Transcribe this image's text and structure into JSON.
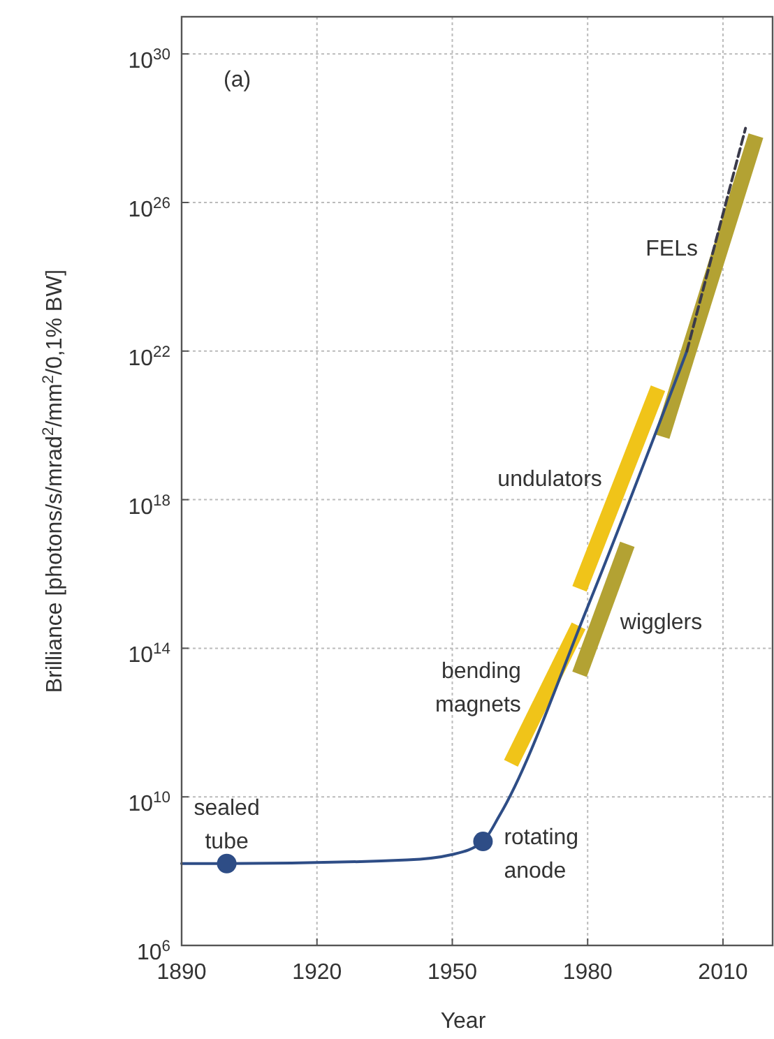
{
  "chart_data": {
    "type": "line",
    "xlabel": "Year",
    "ylabel": "Brilliance [photons/s/mrad$^{2}$/mm$^{2}$/0,1% BW]",
    "log": "y",
    "grid": true,
    "xlim": [
      1890,
      2021
    ],
    "xticks": [
      1890,
      1920,
      1950,
      1980,
      2010
    ],
    "ylim": [
      1000000.0,
      1e+31
    ],
    "yticks": [
      {
        "value": 1000000.0,
        "label": "10$^{6}$"
      },
      {
        "value": 10000000000.0,
        "label": "10$^{10}$"
      },
      {
        "value": 100000000000000.0,
        "label": "10$^{14}$"
      },
      {
        "value": 1e+18,
        "label": "10$^{18}$"
      },
      {
        "value": 1e+22,
        "label": "10$^{22}$"
      },
      {
        "value": 1e+26,
        "label": "10$^{26}$"
      },
      {
        "value": 1e+30,
        "label": "10$^{30}$"
      }
    ],
    "series": [
      {
        "name": "bending\nmagnets",
        "color": "#f0c419",
        "x": [
          1963,
          1978
        ],
        "values": [
          80000000000.0,
          400000000000000.0
        ]
      },
      {
        "name": "undulators",
        "color": "#f0c419",
        "x": [
          1978.2,
          1995.6
        ],
        "values": [
          4000000000000000.0,
          1e+21
        ]
      },
      {
        "name": "wigglers",
        "color": "#b3a233",
        "x": [
          1978.2,
          1988.8
        ],
        "values": [
          20000000000000.0,
          6.3e+16
        ]
      },
      {
        "name": "FELs",
        "color": "#b3a233",
        "x": [
          1996.5,
          2017.3
        ],
        "values": [
          5e+19,
          6.3e+27
        ]
      },
      {
        "color": "#2e4d86",
        "line_style": "solid",
        "x": [
          1890,
          1900,
          1940,
          1950,
          1956.8,
          1960.5,
          1980,
          2002
        ],
        "values": [
          160000000.0,
          160000000.0,
          200000000.0,
          280000000.0,
          630000000.0,
          3200000000.0,
          1300000000000000.0,
          1e+22
        ]
      },
      {
        "color": "#3a3a4a",
        "line_style": "dashed",
        "x": [
          2002,
          2015
        ],
        "values": [
          1e+22,
          1e+28
        ]
      },
      {
        "type": "scatter",
        "color": "#2e4d86",
        "marker": "circle",
        "x": [
          1900,
          1956.8
        ],
        "values": [
          160000000.0,
          630000000.0
        ]
      }
    ],
    "annotations": [
      "(a)",
      {
        "text": "sealed\ntube",
        "x": 1900,
        "y": 160000000.0
      },
      {
        "text": "rotating\nanode",
        "x": 1956.8,
        "y": 630000000.0
      }
    ]
  }
}
